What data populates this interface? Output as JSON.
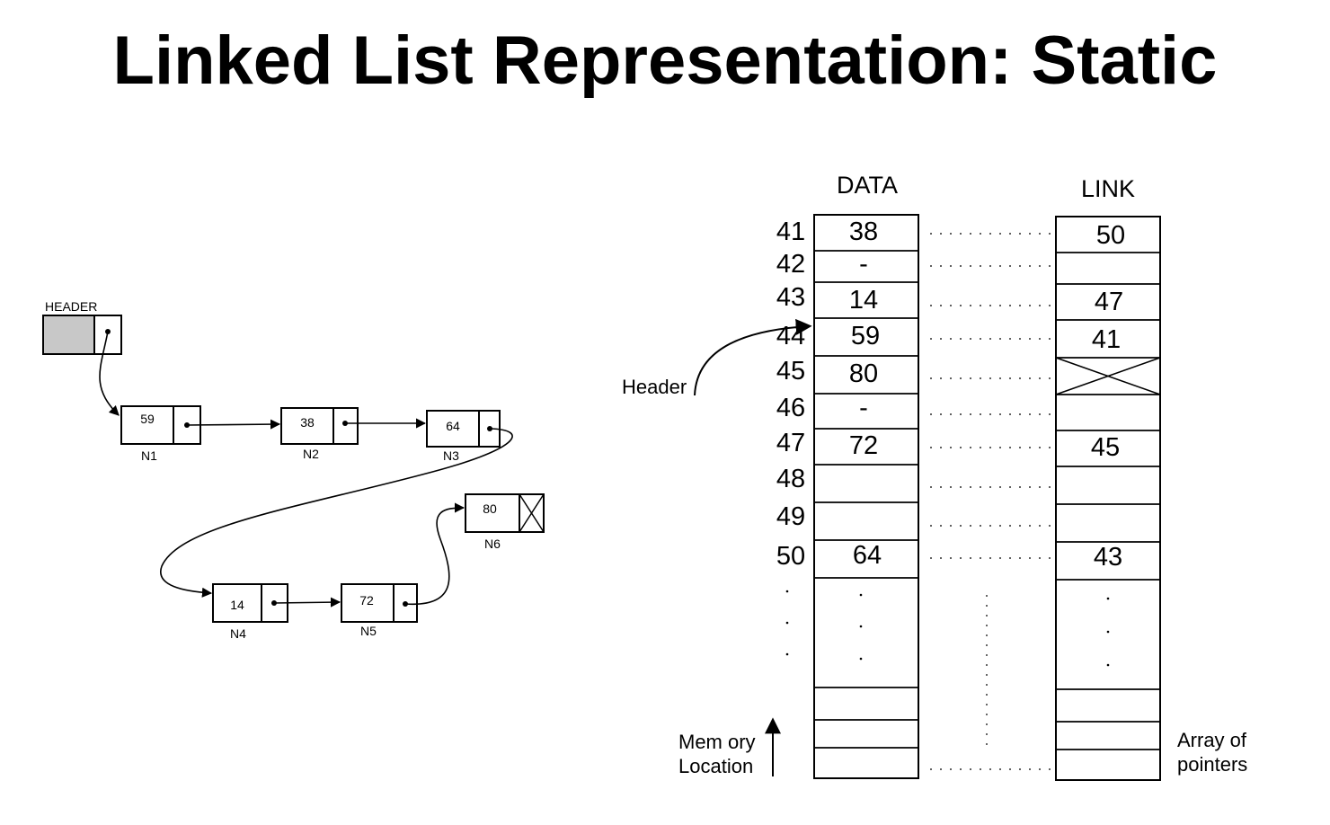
{
  "title": "Linked List Representation: Static",
  "linked_diagram": {
    "header_label": "HEADER",
    "nodes": [
      {
        "value": "59",
        "label": "N1",
        "link": "pointer"
      },
      {
        "value": "38",
        "label": "N2",
        "link": "pointer"
      },
      {
        "value": "64",
        "label": "N3",
        "link": "pointer"
      },
      {
        "value": "14",
        "label": "N4",
        "link": "pointer"
      },
      {
        "value": "72",
        "label": "N5",
        "link": "pointer"
      },
      {
        "value": "80",
        "label": "N6",
        "link": "null"
      }
    ]
  },
  "array_diagram": {
    "data_heading": "DATA",
    "link_heading": "LINK",
    "header_label": "Header",
    "memory_label_line1": "Mem ory",
    "memory_label_line2": "Location",
    "pointers_label_line1": "Array of",
    "pointers_label_line2": "pointers",
    "rows": [
      {
        "address": "41",
        "data": "38",
        "link": "50"
      },
      {
        "address": "42",
        "data": "-",
        "link": ""
      },
      {
        "address": "43",
        "data": "14",
        "link": "47"
      },
      {
        "address": "44",
        "data": "59",
        "link": "41"
      },
      {
        "address": "45",
        "data": "80",
        "link": "null"
      },
      {
        "address": "46",
        "data": "-",
        "link": ""
      },
      {
        "address": "47",
        "data": "72",
        "link": "45"
      },
      {
        "address": "48",
        "data": "",
        "link": ""
      },
      {
        "address": "49",
        "data": "",
        "link": ""
      },
      {
        "address": "50",
        "data": "64",
        "link": "43"
      }
    ]
  }
}
